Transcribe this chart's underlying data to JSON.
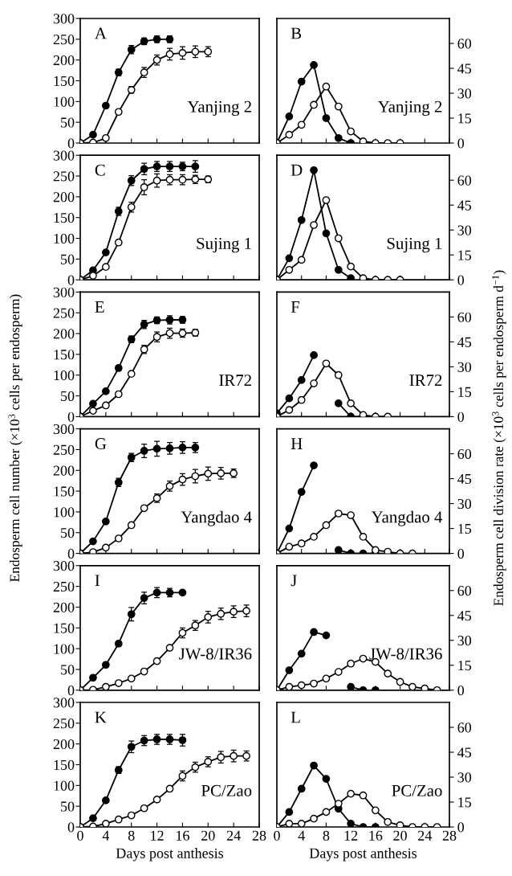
{
  "chart_data": [
    {
      "type": "line",
      "xlim": [
        0,
        28
      ],
      "xticks": [
        0,
        4,
        8,
        12,
        16,
        20,
        24,
        28
      ],
      "ylim": [
        0,
        300
      ],
      "yticks": [
        0,
        50,
        100,
        150,
        200,
        250,
        300
      ],
      "tick_labels": "y",
      "marker": "circle",
      "annotations": [
        "A",
        "Yanjing 2"
      ],
      "series": [
        {
          "color": "#000000",
          "x": [
            0,
            2,
            4,
            6,
            8,
            10,
            12,
            14
          ],
          "values": [
            0,
            20,
            90,
            170,
            225,
            245,
            250,
            250
          ],
          "errors": [
            null,
            null,
            null,
            8,
            10,
            8,
            8,
            8
          ]
        },
        {
          "color": "#ffffff",
          "x": [
            0,
            2,
            4,
            6,
            8,
            10,
            12,
            14,
            16,
            18,
            20
          ],
          "values": [
            0,
            1,
            12,
            75,
            128,
            170,
            200,
            214,
            217,
            220,
            220
          ],
          "errors": [
            null,
            null,
            null,
            null,
            8,
            12,
            12,
            14,
            15,
            14,
            12
          ]
        }
      ]
    },
    {
      "type": "line",
      "xlim": [
        0,
        28
      ],
      "xticks": [
        0,
        4,
        8,
        12,
        16,
        20,
        24,
        28
      ],
      "ylim": [
        0,
        75
      ],
      "yticks": [
        0,
        15,
        30,
        45,
        60
      ],
      "tick_labels": "y",
      "marker": "circle",
      "annotations": [
        "B",
        "Yanjing 2"
      ],
      "series": [
        {
          "color": "#000000",
          "x": [
            0,
            2,
            4,
            6,
            8,
            10,
            12
          ],
          "values": [
            0,
            16,
            37,
            47,
            15,
            3,
            0
          ]
        },
        {
          "color": "#ffffff",
          "x": [
            0,
            2,
            4,
            6,
            8,
            10,
            12,
            14,
            16,
            18,
            20
          ],
          "values": [
            0,
            5,
            11,
            23,
            34,
            22,
            7,
            1,
            0,
            0,
            0
          ]
        }
      ]
    },
    {
      "type": "line",
      "xlim": [
        0,
        28
      ],
      "xticks": [
        0,
        4,
        8,
        12,
        16,
        20,
        24,
        28
      ],
      "ylim": [
        0,
        300
      ],
      "yticks": [
        0,
        50,
        100,
        150,
        200,
        250,
        300
      ],
      "tick_labels": "y",
      "marker": "circle",
      "annotations": [
        "C",
        "Sujing 1"
      ],
      "series": [
        {
          "color": "#000000",
          "x": [
            0,
            2,
            4,
            6,
            8,
            10,
            12,
            14,
            16,
            18
          ],
          "values": [
            0,
            23,
            66,
            165,
            239,
            267,
            273,
            273,
            273,
            273
          ],
          "errors": [
            null,
            null,
            null,
            10,
            12,
            14,
            12,
            12,
            10,
            14
          ]
        },
        {
          "color": "#ffffff",
          "x": [
            0,
            2,
            4,
            6,
            8,
            10,
            12,
            14,
            16,
            18,
            20
          ],
          "values": [
            0,
            10,
            31,
            90,
            175,
            223,
            239,
            241,
            241,
            242,
            242
          ],
          "errors": [
            null,
            null,
            null,
            null,
            12,
            18,
            16,
            12,
            12,
            10,
            8
          ]
        }
      ]
    },
    {
      "type": "line",
      "xlim": [
        0,
        28
      ],
      "xticks": [
        0,
        4,
        8,
        12,
        16,
        20,
        24,
        28
      ],
      "ylim": [
        0,
        75
      ],
      "yticks": [
        0,
        15,
        30,
        45,
        60
      ],
      "tick_labels": "y",
      "marker": "circle",
      "annotations": [
        "D",
        "Sujing 1"
      ],
      "series": [
        {
          "color": "#000000",
          "x": [
            0,
            2,
            4,
            6,
            8,
            10,
            12
          ],
          "values": [
            0,
            13,
            36,
            66,
            28,
            6,
            1
          ]
        },
        {
          "color": "#ffffff",
          "x": [
            0,
            2,
            4,
            6,
            8,
            10,
            12,
            14,
            16,
            18,
            20
          ],
          "values": [
            0,
            6,
            12,
            33,
            48,
            25,
            8,
            1,
            0,
            0,
            0
          ]
        }
      ]
    },
    {
      "type": "line",
      "xlim": [
        0,
        28
      ],
      "xticks": [
        0,
        4,
        8,
        12,
        16,
        20,
        24,
        28
      ],
      "ylim": [
        0,
        300
      ],
      "yticks": [
        0,
        50,
        100,
        150,
        200,
        250,
        300
      ],
      "tick_labels": "y",
      "marker": "circle",
      "ylabel": "Endosperm cell number (×10$^{3}$ cells per endosperm)",
      "annotations": [
        "E",
        "IR72"
      ],
      "series": [
        {
          "color": "#000000",
          "x": [
            0,
            2,
            4,
            6,
            8,
            10,
            12,
            14,
            16
          ],
          "values": [
            0,
            31,
            61,
            117,
            186,
            222,
            232,
            233,
            233
          ],
          "errors": [
            null,
            null,
            null,
            6,
            8,
            10,
            8,
            10,
            8
          ]
        },
        {
          "color": "#ffffff",
          "x": [
            0,
            2,
            4,
            6,
            8,
            10,
            12,
            14,
            16,
            18
          ],
          "values": [
            0,
            14,
            27,
            54,
            103,
            162,
            192,
            201,
            201,
            202
          ],
          "errors": [
            null,
            null,
            null,
            null,
            null,
            10,
            12,
            12,
            10,
            8
          ]
        }
      ]
    },
    {
      "type": "line",
      "xlim": [
        0,
        28
      ],
      "xticks": [
        0,
        4,
        8,
        12,
        16,
        20,
        24,
        28
      ],
      "ylim": [
        0,
        75
      ],
      "yticks": [
        0,
        15,
        30,
        45,
        60
      ],
      "tick_labels": "y",
      "marker": "circle",
      "ylabel": "Endosperm cell division rate (×10$^{3}$ cells per endosperm d$^{−1}$)",
      "annotations": [
        "F",
        "IR72"
      ],
      "series": [
        {
          "color": "#000000",
          "x": [
            0,
            2,
            4,
            6,
            8,
            10,
            12,
            14
          ],
          "values": [
            2,
            11,
            22,
            37,
            null,
            8,
            0,
            0
          ]
        },
        {
          "color": "#ffffff",
          "x": [
            0,
            2,
            4,
            6,
            8,
            10,
            12,
            14,
            16,
            18
          ],
          "values": [
            0,
            4,
            10,
            20,
            32,
            25,
            8,
            1,
            0,
            0
          ]
        }
      ]
    },
    {
      "type": "line",
      "xlim": [
        0,
        28
      ],
      "xticks": [
        0,
        4,
        8,
        12,
        16,
        20,
        24,
        28
      ],
      "ylim": [
        0,
        300
      ],
      "yticks": [
        0,
        50,
        100,
        150,
        200,
        250,
        300
      ],
      "tick_labels": "y",
      "marker": "circle",
      "annotations": [
        "G",
        "Yangdao 4"
      ],
      "series": [
        {
          "color": "#000000",
          "x": [
            0,
            2,
            4,
            6,
            8,
            10,
            12,
            14,
            16,
            18
          ],
          "values": [
            0,
            29,
            77,
            171,
            231,
            247,
            252,
            253,
            255,
            255
          ],
          "errors": [
            null,
            null,
            null,
            10,
            10,
            16,
            18,
            14,
            14,
            12
          ]
        },
        {
          "color": "#ffffff",
          "x": [
            0,
            2,
            4,
            6,
            8,
            10,
            12,
            14,
            16,
            18,
            20,
            22,
            24
          ],
          "values": [
            0,
            3,
            14,
            36,
            68,
            109,
            133,
            162,
            178,
            186,
            192,
            193,
            193
          ],
          "errors": [
            null,
            null,
            null,
            null,
            null,
            null,
            10,
            12,
            14,
            16,
            16,
            14,
            10
          ]
        }
      ]
    },
    {
      "type": "line",
      "xlim": [
        0,
        28
      ],
      "xticks": [
        0,
        4,
        8,
        12,
        16,
        20,
        24,
        28
      ],
      "ylim": [
        0,
        75
      ],
      "yticks": [
        0,
        15,
        30,
        45,
        60
      ],
      "tick_labels": "y",
      "marker": "circle",
      "annotations": [
        "H",
        "Yangdao 4"
      ],
      "series": [
        {
          "color": "#000000",
          "x": [
            0,
            2,
            4,
            6,
            8,
            10,
            12,
            14,
            16
          ],
          "values": [
            0,
            15,
            37,
            53,
            null,
            2,
            0,
            0,
            0
          ]
        },
        {
          "color": "#ffffff",
          "x": [
            0,
            2,
            4,
            6,
            8,
            10,
            12,
            14,
            16,
            18,
            20,
            22
          ],
          "values": [
            0,
            4,
            6,
            10,
            17,
            24,
            23,
            10,
            2,
            1,
            0,
            0
          ]
        }
      ]
    },
    {
      "type": "line",
      "xlim": [
        0,
        28
      ],
      "xticks": [
        0,
        4,
        8,
        12,
        16,
        20,
        24,
        28
      ],
      "ylim": [
        0,
        300
      ],
      "yticks": [
        0,
        50,
        100,
        150,
        200,
        250,
        300
      ],
      "tick_labels": "y",
      "marker": "circle",
      "annotations": [
        "I",
        "JW-8/IR36"
      ],
      "series": [
        {
          "color": "#000000",
          "x": [
            0,
            2,
            4,
            6,
            8,
            10,
            12,
            14,
            16
          ],
          "values": [
            0,
            30,
            61,
            112,
            183,
            222,
            235,
            235,
            235
          ],
          "errors": [
            null,
            null,
            null,
            6,
            16,
            14,
            12,
            10,
            null
          ]
        },
        {
          "color": "#ffffff",
          "x": [
            0,
            2,
            4,
            6,
            8,
            10,
            12,
            14,
            16,
            18,
            20,
            22,
            24,
            26
          ],
          "values": [
            0,
            1,
            8,
            17,
            28,
            45,
            70,
            102,
            138,
            156,
            176,
            184,
            189,
            191
          ],
          "errors": [
            null,
            null,
            null,
            null,
            null,
            null,
            null,
            null,
            12,
            12,
            14,
            14,
            14,
            14
          ]
        }
      ]
    },
    {
      "type": "line",
      "xlim": [
        0,
        28
      ],
      "xticks": [
        0,
        4,
        8,
        12,
        16,
        20,
        24,
        28
      ],
      "ylim": [
        0,
        75
      ],
      "yticks": [
        0,
        15,
        30,
        45,
        60
      ],
      "tick_labels": "y",
      "marker": "circle",
      "annotations": [
        "J",
        "JW-8/IR36"
      ],
      "series": [
        {
          "color": "#000000",
          "x": [
            0,
            2,
            4,
            6,
            8,
            10,
            12,
            14,
            16
          ],
          "values": [
            0,
            12,
            22,
            35,
            33,
            null,
            2,
            0,
            0
          ]
        },
        {
          "color": "#ffffff",
          "x": [
            0,
            2,
            4,
            6,
            8,
            10,
            12,
            14,
            16,
            18,
            20,
            22,
            24,
            26
          ],
          "values": [
            0,
            2,
            3,
            4,
            7,
            11,
            16,
            19,
            17,
            10,
            5,
            2,
            1,
            0
          ]
        }
      ]
    },
    {
      "type": "line",
      "xlim": [
        0,
        28
      ],
      "xticks": [
        0,
        4,
        8,
        12,
        16,
        20,
        24,
        28
      ],
      "ylim": [
        0,
        300
      ],
      "yticks": [
        0,
        50,
        100,
        150,
        200,
        250,
        300
      ],
      "marker": "circle",
      "xlabel": "Days post anthesis",
      "annotations": [
        "K",
        "PC/Zao"
      ],
      "series": [
        {
          "color": "#000000",
          "x": [
            0,
            2,
            4,
            6,
            8,
            10,
            12,
            14,
            16
          ],
          "values": [
            0,
            21,
            64,
            137,
            193,
            208,
            211,
            211,
            209
          ],
          "errors": [
            null,
            null,
            null,
            8,
            14,
            12,
            12,
            12,
            14
          ]
        },
        {
          "color": "#ffffff",
          "x": [
            0,
            2,
            4,
            6,
            8,
            10,
            12,
            14,
            16,
            18,
            20,
            22,
            24,
            26
          ],
          "values": [
            0,
            1,
            8,
            18,
            28,
            45,
            66,
            92,
            123,
            144,
            157,
            168,
            171,
            171
          ],
          "errors": [
            null,
            null,
            null,
            null,
            null,
            null,
            null,
            null,
            12,
            12,
            12,
            14,
            14,
            12
          ]
        }
      ]
    },
    {
      "type": "line",
      "xlim": [
        0,
        28
      ],
      "xticks": [
        0,
        4,
        8,
        12,
        16,
        20,
        24,
        28
      ],
      "ylim": [
        0,
        75
      ],
      "yticks": [
        0,
        15,
        30,
        45,
        60
      ],
      "marker": "circle",
      "xlabel": "Days post anthesis",
      "annotations": [
        "L",
        "PC/Zao"
      ],
      "series": [
        {
          "color": "#000000",
          "x": [
            0,
            2,
            4,
            6,
            8,
            10,
            12,
            14,
            16
          ],
          "values": [
            0,
            9,
            23,
            37,
            29,
            11,
            2,
            0,
            0
          ]
        },
        {
          "color": "#ffffff",
          "x": [
            0,
            2,
            4,
            6,
            8,
            10,
            12,
            14,
            16,
            18,
            20,
            22,
            24,
            26
          ],
          "values": [
            0,
            2,
            2,
            5,
            9,
            14,
            20,
            19,
            10,
            3,
            1,
            0,
            0,
            0
          ]
        }
      ]
    }
  ]
}
